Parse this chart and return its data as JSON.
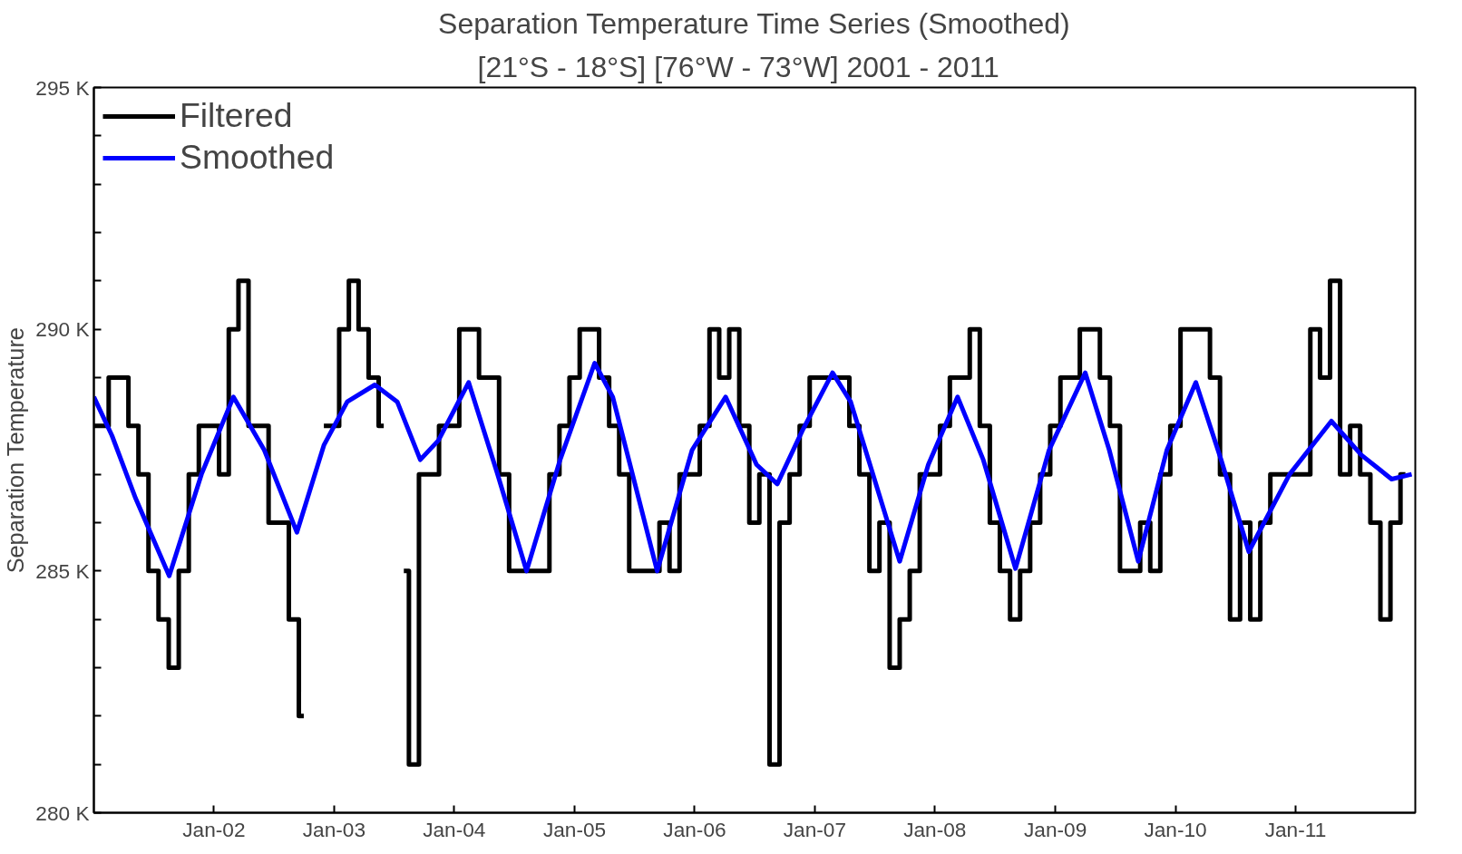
{
  "chart_data": {
    "type": "line",
    "title": "Separation Temperature Time Series (Smoothed)",
    "subtitle": "[21°S - 18°S]   [76°W - 73°W]   2001 - 2011",
    "ylabel": "Separation Temperature",
    "xlim": [
      "2001-01-01",
      "2011-12-31"
    ],
    "ylim": [
      280,
      295
    ],
    "yticks": [
      {
        "value": 280,
        "label": "280 K"
      },
      {
        "value": 281,
        "label": null
      },
      {
        "value": 282,
        "label": null
      },
      {
        "value": 283,
        "label": null
      },
      {
        "value": 284,
        "label": null
      },
      {
        "value": 285,
        "label": "285 K"
      },
      {
        "value": 286,
        "label": null
      },
      {
        "value": 287,
        "label": null
      },
      {
        "value": 288,
        "label": null
      },
      {
        "value": 289,
        "label": null
      },
      {
        "value": 290,
        "label": "290 K"
      },
      {
        "value": 291,
        "label": null
      },
      {
        "value": 292,
        "label": null
      },
      {
        "value": 293,
        "label": null
      },
      {
        "value": 294,
        "label": null
      },
      {
        "value": 295,
        "label": "295 K"
      }
    ],
    "xticks": [
      {
        "value": "2002-01-01",
        "label": "Jan-02"
      },
      {
        "value": "2003-01-01",
        "label": "Jan-03"
      },
      {
        "value": "2004-01-01",
        "label": "Jan-04"
      },
      {
        "value": "2005-01-01",
        "label": "Jan-05"
      },
      {
        "value": "2006-01-01",
        "label": "Jan-06"
      },
      {
        "value": "2007-01-01",
        "label": "Jan-07"
      },
      {
        "value": "2008-01-01",
        "label": "Jan-08"
      },
      {
        "value": "2009-01-01",
        "label": "Jan-09"
      },
      {
        "value": "2010-01-01",
        "label": "Jan-10"
      },
      {
        "value": "2011-01-01",
        "label": "Jan-11"
      }
    ],
    "grid": false,
    "legend": "top left",
    "line_style": "solid",
    "marker": "none",
    "series": [
      {
        "name": "Filtered",
        "type": "step",
        "color": "#000000",
        "x": [
          "2001-01",
          "2001-02",
          "2001-03",
          "2001-04",
          "2001-05",
          "2001-06",
          "2001-07",
          "2001-08",
          "2001-09",
          "2001-10",
          "2001-11",
          "2001-12",
          "2002-01",
          "2002-02",
          "2002-03",
          "2002-04",
          "2002-05",
          "2002-06",
          "2002-07",
          "2002-08",
          "2002-09",
          "2002-10",
          "2002-11",
          "2002-12",
          "2003-01",
          "2003-02",
          "2003-03",
          "2003-04",
          "2003-05",
          "2003-06",
          "2003-07",
          "2003-08",
          "2003-09",
          "2003-10",
          "2003-11",
          "2003-12",
          "2004-01",
          "2004-02",
          "2004-03",
          "2004-04",
          "2004-05",
          "2004-06",
          "2004-07",
          "2004-08",
          "2004-09",
          "2004-10",
          "2004-11",
          "2004-12",
          "2005-01",
          "2005-02",
          "2005-03",
          "2005-04",
          "2005-05",
          "2005-06",
          "2005-07",
          "2005-08",
          "2005-09",
          "2005-10",
          "2005-11",
          "2005-12",
          "2006-01",
          "2006-02",
          "2006-03",
          "2006-04",
          "2006-05",
          "2006-06",
          "2006-07",
          "2006-08",
          "2006-09",
          "2006-10",
          "2006-11",
          "2006-12",
          "2007-01",
          "2007-02",
          "2007-03",
          "2007-04",
          "2007-05",
          "2007-06",
          "2007-07",
          "2007-08",
          "2007-09",
          "2007-10",
          "2007-11",
          "2007-12",
          "2008-01",
          "2008-02",
          "2008-03",
          "2008-04",
          "2008-05",
          "2008-06",
          "2008-07",
          "2008-08",
          "2008-09",
          "2008-10",
          "2008-11",
          "2008-12",
          "2009-01",
          "2009-02",
          "2009-03",
          "2009-04",
          "2009-05",
          "2009-06",
          "2009-07",
          "2009-08",
          "2009-09",
          "2009-10",
          "2009-11",
          "2009-12",
          "2010-01",
          "2010-02",
          "2010-03",
          "2010-04",
          "2010-05",
          "2010-06",
          "2010-07",
          "2010-08",
          "2010-09",
          "2010-10",
          "2010-11",
          "2010-12",
          "2011-01",
          "2011-02",
          "2011-03",
          "2011-04",
          "2011-05",
          "2011-06",
          "2011-07",
          "2011-08",
          "2011-09",
          "2011-10",
          "2011-11",
          "2011-12"
        ],
        "values": [
          288,
          288,
          289,
          289,
          288,
          287,
          285,
          284,
          283,
          285,
          287,
          288,
          288,
          287,
          290,
          291,
          288,
          288,
          286,
          286,
          284,
          282,
          null,
          288,
          288,
          290,
          291,
          290,
          289,
          288,
          null,
          285,
          281,
          287,
          287,
          288,
          288,
          290,
          290,
          289,
          289,
          287,
          285,
          285,
          285,
          285,
          287,
          288,
          289,
          290,
          290,
          289,
          288,
          287,
          285,
          285,
          285,
          286,
          285,
          287,
          287,
          288,
          290,
          289,
          290,
          288,
          286,
          287,
          281,
          286,
          287,
          288,
          289,
          289,
          289,
          289,
          288,
          287,
          285,
          286,
          283,
          284,
          285,
          287,
          287,
          288,
          289,
          289,
          290,
          288,
          286,
          285,
          284,
          285,
          286,
          287,
          288,
          289,
          289,
          290,
          290,
          289,
          288,
          285,
          285,
          286,
          285,
          287,
          288,
          290,
          290,
          290,
          289,
          287,
          284,
          286,
          284,
          286,
          287,
          287,
          287,
          287,
          290,
          289,
          291,
          287,
          288,
          287,
          286,
          284,
          286,
          287
        ]
      },
      {
        "name": "Smoothed",
        "color": "#0000ff",
        "x": [
          "2001-01-01",
          "2001-02-25",
          "2001-05-08",
          "2001-08-18",
          "2001-11-24",
          "2002-03-01",
          "2002-06-03",
          "2002-09-10",
          "2002-12-01",
          "2003-02-10",
          "2003-05-05",
          "2003-07-12",
          "2003-09-20",
          "2003-11-14",
          "2004-02-14",
          "2004-05-12",
          "2004-08-08",
          "2004-11-18",
          "2005-03-03",
          "2005-04-27",
          "2005-09-09",
          "2005-12-24",
          "2006-04-05",
          "2006-07-08",
          "2006-09-09",
          "2006-11-24",
          "2007-02-24",
          "2007-04-20",
          "2007-09-16",
          "2007-12-12",
          "2008-03-10",
          "2008-05-27",
          "2008-09-02",
          "2008-12-13",
          "2009-04-02",
          "2009-06-14",
          "2009-09-10",
          "2009-12-06",
          "2010-03-04",
          "2010-05-20",
          "2010-08-12",
          "2010-12-14",
          "2011-04-20",
          "2011-07-20",
          "2011-10-20",
          "2011-12-20"
        ],
        "values": [
          288.6,
          287.8,
          286.5,
          284.9,
          287.0,
          288.6,
          287.5,
          285.8,
          287.6,
          288.5,
          288.85,
          288.5,
          287.3,
          287.7,
          288.9,
          287.0,
          285.0,
          287.3,
          289.3,
          288.6,
          285.0,
          287.5,
          288.6,
          287.2,
          286.8,
          287.9,
          289.1,
          288.5,
          285.2,
          287.2,
          288.6,
          287.3,
          285.05,
          287.5,
          289.1,
          287.5,
          285.2,
          287.5,
          288.9,
          287.3,
          285.4,
          287.0,
          288.1,
          287.4,
          286.9,
          287.0
        ]
      }
    ]
  }
}
